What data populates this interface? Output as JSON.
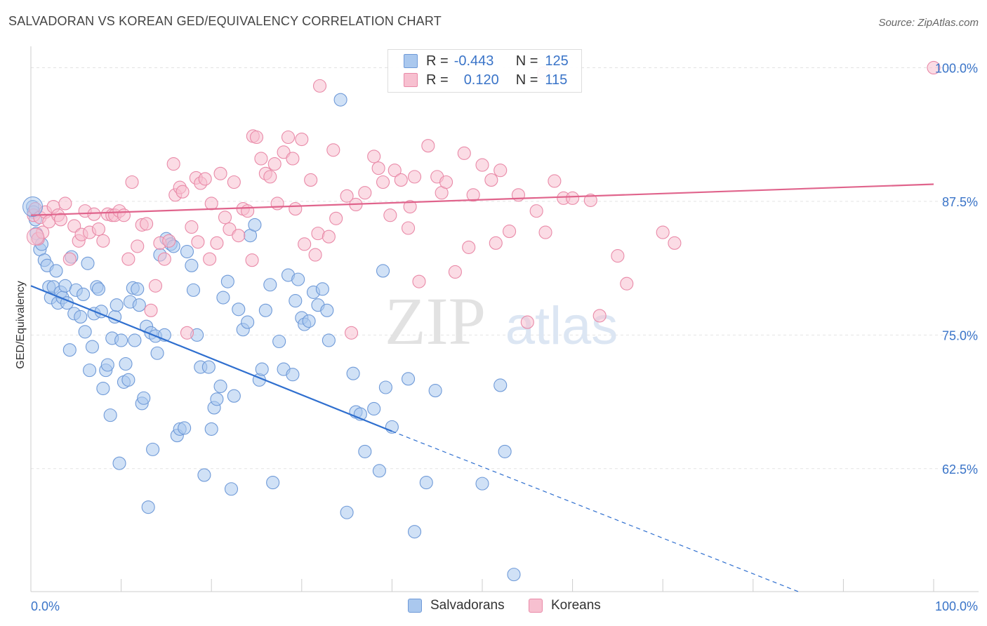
{
  "title": "SALVADORAN VS KOREAN GED/EQUIVALENCY CORRELATION CHART",
  "source": "Source: ZipAtlas.com",
  "watermark": {
    "zip": "ZIP",
    "atlas": "atlas"
  },
  "legend": {
    "rows": [
      {
        "r_label": "R =",
        "r_value": "-0.443",
        "n_label": "N =",
        "n_value": "125",
        "color": "#aac8ee",
        "border": "#6f9ad8"
      },
      {
        "r_label": "R =",
        "r_value": "0.120",
        "n_label": "N =",
        "n_value": "115",
        "color": "#f7c0d0",
        "border": "#e98aa8"
      }
    ]
  },
  "bottom_legend": [
    {
      "label": "Salvadorans",
      "color": "#aac8ee",
      "border": "#6f9ad8"
    },
    {
      "label": "Koreans",
      "color": "#f7c0d0",
      "border": "#e98aa8"
    }
  ],
  "chart_data": {
    "type": "scatter",
    "title": "SALVADORAN VS KOREAN GED/EQUIVALENCY CORRELATION CHART",
    "xlabel": "",
    "ylabel": "GED/Equivalency",
    "x_ticks": [
      "0.0%",
      "100.0%"
    ],
    "y_ticks": [
      "100.0%",
      "87.5%",
      "75.0%",
      "62.5%"
    ],
    "y_tick_values": [
      100,
      87.5,
      75,
      62.5
    ],
    "xlim": [
      0,
      100
    ],
    "ylim": [
      51,
      102
    ],
    "grid": true,
    "series": [
      {
        "name": "Salvadorans",
        "color": "#6f9ad8",
        "fill": "#aac8ee",
        "trend": {
          "x0": 0,
          "y0": 79.6,
          "x1": 40,
          "y1": 66.0,
          "dash_to_x": 85,
          "dash_to_y": 51
        },
        "points": [
          [
            0.2,
            87.0
          ],
          [
            0.3,
            86.5
          ],
          [
            0.5,
            85.8
          ],
          [
            0.6,
            84.5
          ],
          [
            0.8,
            84.0
          ],
          [
            1.0,
            83.0
          ],
          [
            1.2,
            83.5
          ],
          [
            1.5,
            82.0
          ],
          [
            1.8,
            81.5
          ],
          [
            2.0,
            79.5
          ],
          [
            2.2,
            78.5
          ],
          [
            2.5,
            79.5
          ],
          [
            2.8,
            81.0
          ],
          [
            3.0,
            78.0
          ],
          [
            3.3,
            79.0
          ],
          [
            3.5,
            78.5
          ],
          [
            3.8,
            79.6
          ],
          [
            4.0,
            78.0
          ],
          [
            4.3,
            73.6
          ],
          [
            4.5,
            82.3
          ],
          [
            4.8,
            77.0
          ],
          [
            5.0,
            79.2
          ],
          [
            5.5,
            76.7
          ],
          [
            5.8,
            78.8
          ],
          [
            6.0,
            75.3
          ],
          [
            6.3,
            81.7
          ],
          [
            6.5,
            71.7
          ],
          [
            6.8,
            73.9
          ],
          [
            7.0,
            77.0
          ],
          [
            7.3,
            79.5
          ],
          [
            7.5,
            79.3
          ],
          [
            7.8,
            77.2
          ],
          [
            8.0,
            70.0
          ],
          [
            8.3,
            71.7
          ],
          [
            8.5,
            72.2
          ],
          [
            8.8,
            67.5
          ],
          [
            9.0,
            74.7
          ],
          [
            9.3,
            76.7
          ],
          [
            9.5,
            77.8
          ],
          [
            9.8,
            63.0
          ],
          [
            10.0,
            74.5
          ],
          [
            10.3,
            70.6
          ],
          [
            10.5,
            72.3
          ],
          [
            10.8,
            70.8
          ],
          [
            11.0,
            78.1
          ],
          [
            11.3,
            79.4
          ],
          [
            11.5,
            74.5
          ],
          [
            11.8,
            79.3
          ],
          [
            12.0,
            77.8
          ],
          [
            12.3,
            68.6
          ],
          [
            12.5,
            69.1
          ],
          [
            12.8,
            75.8
          ],
          [
            13.0,
            58.9
          ],
          [
            13.3,
            75.2
          ],
          [
            13.5,
            64.3
          ],
          [
            13.8,
            74.9
          ],
          [
            14.0,
            73.3
          ],
          [
            14.3,
            82.5
          ],
          [
            14.8,
            75.0
          ],
          [
            15.0,
            84.0
          ],
          [
            15.5,
            83.5
          ],
          [
            15.8,
            83.3
          ],
          [
            16.2,
            65.6
          ],
          [
            16.5,
            66.2
          ],
          [
            17.0,
            66.3
          ],
          [
            17.3,
            82.8
          ],
          [
            17.8,
            81.5
          ],
          [
            18.0,
            79.2
          ],
          [
            18.4,
            75.0
          ],
          [
            18.8,
            72.0
          ],
          [
            19.2,
            61.9
          ],
          [
            19.7,
            72.0
          ],
          [
            20.0,
            66.2
          ],
          [
            20.3,
            68.2
          ],
          [
            20.6,
            69.0
          ],
          [
            21.0,
            70.2
          ],
          [
            21.3,
            78.5
          ],
          [
            21.8,
            80.0
          ],
          [
            22.2,
            60.6
          ],
          [
            22.5,
            69.3
          ],
          [
            23.0,
            77.4
          ],
          [
            23.5,
            75.5
          ],
          [
            24.0,
            76.2
          ],
          [
            24.3,
            84.3
          ],
          [
            24.8,
            85.3
          ],
          [
            25.3,
            70.8
          ],
          [
            25.6,
            71.8
          ],
          [
            26.0,
            77.3
          ],
          [
            26.5,
            79.7
          ],
          [
            26.8,
            61.2
          ],
          [
            27.5,
            74.4
          ],
          [
            28.0,
            71.8
          ],
          [
            28.5,
            80.6
          ],
          [
            29.0,
            71.3
          ],
          [
            29.3,
            78.2
          ],
          [
            29.6,
            80.2
          ],
          [
            30.0,
            76.6
          ],
          [
            30.3,
            76.0
          ],
          [
            30.8,
            76.3
          ],
          [
            31.3,
            79.0
          ],
          [
            31.8,
            77.8
          ],
          [
            32.3,
            79.3
          ],
          [
            32.8,
            77.3
          ],
          [
            33.0,
            74.5
          ],
          [
            34.3,
            97.0
          ],
          [
            35.0,
            58.4
          ],
          [
            35.7,
            71.4
          ],
          [
            36.0,
            67.8
          ],
          [
            36.5,
            67.6
          ],
          [
            37.0,
            64.1
          ],
          [
            38.0,
            68.1
          ],
          [
            38.6,
            62.3
          ],
          [
            39.0,
            81.0
          ],
          [
            39.3,
            70.1
          ],
          [
            40.0,
            66.4
          ],
          [
            41.8,
            70.9
          ],
          [
            42.5,
            56.6
          ],
          [
            43.8,
            61.2
          ],
          [
            44.8,
            69.8
          ],
          [
            50.0,
            61.1
          ],
          [
            52.0,
            70.3
          ],
          [
            52.5,
            64.1
          ],
          [
            53.5,
            52.6
          ]
        ]
      },
      {
        "name": "Koreans",
        "color": "#e98aa8",
        "fill": "#f7c0d0",
        "trend": {
          "x0": 0,
          "y0": 86.2,
          "x1": 100,
          "y1": 89.1
        },
        "points": [
          [
            0.3,
            86.2
          ],
          [
            0.5,
            86.8
          ],
          [
            0.8,
            84.0
          ],
          [
            1.0,
            86.0
          ],
          [
            1.3,
            84.6
          ],
          [
            1.6,
            86.5
          ],
          [
            2.0,
            85.6
          ],
          [
            2.5,
            87.0
          ],
          [
            3.0,
            86.2
          ],
          [
            3.3,
            85.8
          ],
          [
            3.8,
            87.3
          ],
          [
            4.3,
            82.1
          ],
          [
            4.8,
            85.2
          ],
          [
            5.3,
            83.8
          ],
          [
            5.6,
            84.4
          ],
          [
            6.0,
            86.6
          ],
          [
            6.5,
            84.6
          ],
          [
            7.0,
            86.3
          ],
          [
            7.5,
            84.9
          ],
          [
            8.0,
            83.8
          ],
          [
            8.5,
            86.3
          ],
          [
            9.0,
            86.2
          ],
          [
            9.3,
            86.2
          ],
          [
            9.8,
            86.6
          ],
          [
            10.3,
            86.2
          ],
          [
            10.8,
            82.1
          ],
          [
            11.2,
            89.3
          ],
          [
            11.8,
            83.3
          ],
          [
            12.3,
            85.3
          ],
          [
            12.8,
            85.4
          ],
          [
            13.3,
            77.3
          ],
          [
            13.8,
            79.6
          ],
          [
            14.3,
            83.6
          ],
          [
            14.8,
            82.1
          ],
          [
            15.3,
            83.8
          ],
          [
            15.8,
            91.0
          ],
          [
            16.0,
            88.1
          ],
          [
            16.5,
            88.8
          ],
          [
            16.8,
            88.4
          ],
          [
            17.3,
            75.2
          ],
          [
            17.8,
            85.1
          ],
          [
            18.3,
            89.7
          ],
          [
            18.5,
            83.7
          ],
          [
            18.8,
            89.2
          ],
          [
            19.3,
            89.6
          ],
          [
            19.8,
            82.1
          ],
          [
            20.0,
            87.3
          ],
          [
            20.6,
            83.6
          ],
          [
            21.0,
            90.1
          ],
          [
            21.5,
            86.0
          ],
          [
            22.0,
            84.9
          ],
          [
            22.5,
            89.3
          ],
          [
            23.0,
            84.3
          ],
          [
            23.5,
            86.8
          ],
          [
            24.0,
            86.6
          ],
          [
            24.5,
            82.0
          ],
          [
            24.6,
            93.6
          ],
          [
            25.0,
            93.5
          ],
          [
            25.5,
            91.5
          ],
          [
            26.0,
            90.1
          ],
          [
            26.5,
            89.8
          ],
          [
            27.0,
            91.0
          ],
          [
            27.3,
            87.3
          ],
          [
            28.0,
            92.1
          ],
          [
            28.5,
            93.5
          ],
          [
            29.0,
            91.5
          ],
          [
            29.3,
            86.8
          ],
          [
            30.0,
            93.3
          ],
          [
            30.3,
            83.5
          ],
          [
            31.0,
            89.5
          ],
          [
            31.5,
            82.5
          ],
          [
            31.8,
            84.5
          ],
          [
            32.0,
            98.3
          ],
          [
            33.0,
            84.2
          ],
          [
            33.5,
            92.3
          ],
          [
            33.8,
            85.9
          ],
          [
            35.0,
            88.0
          ],
          [
            35.5,
            75.2
          ],
          [
            36.0,
            87.2
          ],
          [
            37.0,
            88.3
          ],
          [
            38.0,
            91.7
          ],
          [
            38.5,
            90.6
          ],
          [
            39.0,
            89.3
          ],
          [
            39.8,
            86.2
          ],
          [
            40.3,
            90.4
          ],
          [
            41.0,
            89.5
          ],
          [
            41.8,
            85.0
          ],
          [
            42.0,
            87.0
          ],
          [
            42.5,
            89.8
          ],
          [
            43.0,
            80.0
          ],
          [
            44.0,
            92.7
          ],
          [
            45.0,
            89.8
          ],
          [
            45.5,
            88.3
          ],
          [
            46.0,
            89.3
          ],
          [
            47.0,
            80.9
          ],
          [
            48.0,
            92.0
          ],
          [
            48.5,
            83.2
          ],
          [
            49.0,
            88.1
          ],
          [
            50.0,
            90.9
          ],
          [
            51.0,
            89.5
          ],
          [
            51.5,
            83.6
          ],
          [
            52.0,
            90.4
          ],
          [
            53.0,
            84.7
          ],
          [
            54.0,
            88.1
          ],
          [
            55.0,
            76.2
          ],
          [
            56.0,
            86.6
          ],
          [
            56.8,
            99.5
          ],
          [
            57.0,
            84.6
          ],
          [
            58.0,
            89.4
          ],
          [
            59.0,
            87.8
          ],
          [
            60.0,
            87.8
          ],
          [
            62.0,
            87.6
          ],
          [
            63.0,
            76.8
          ],
          [
            65.0,
            82.4
          ],
          [
            66.0,
            79.8
          ],
          [
            70.0,
            84.6
          ],
          [
            71.3,
            83.6
          ],
          [
            100.0,
            100.0
          ]
        ]
      }
    ]
  }
}
